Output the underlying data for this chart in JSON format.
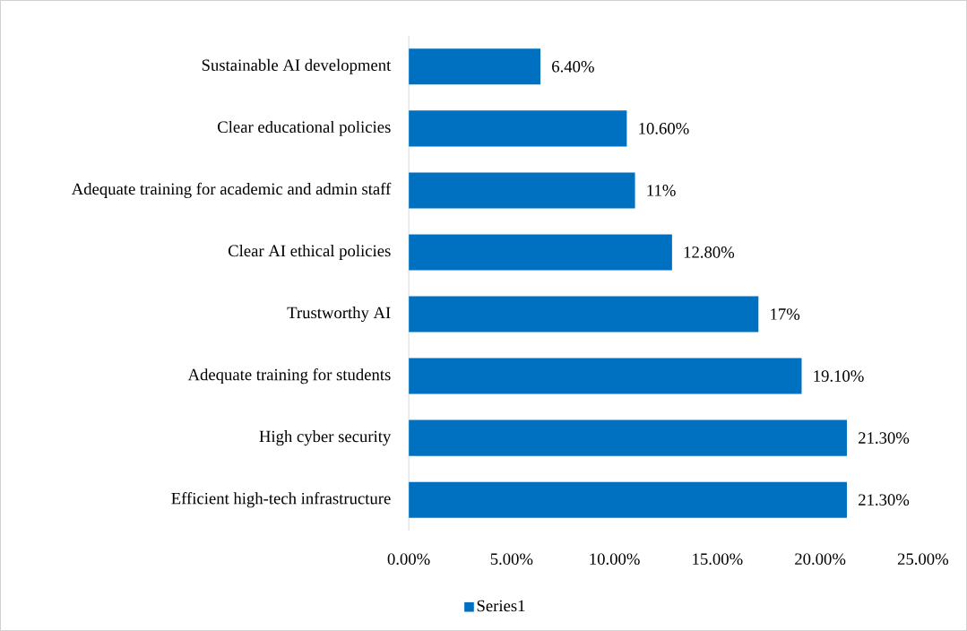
{
  "chart_data": {
    "type": "bar",
    "orientation": "horizontal",
    "categories": [
      "Sustainable AI development",
      "Clear educational policies",
      "Adequate training for academic and admin staff",
      "Clear AI ethical policies",
      "Trustworthy AI",
      "Adequate training for students",
      "High cyber security",
      "Efficient high-tech infrastructure"
    ],
    "series": [
      {
        "name": "Series1",
        "color": "#0070c0",
        "values": [
          6.4,
          10.6,
          11,
          12.8,
          17,
          19.1,
          21.3,
          21.3
        ],
        "value_labels": [
          "6.40%",
          "10.60%",
          "11%",
          "12.80%",
          "17%",
          "19.10%",
          "21.30%",
          "21.30%"
        ]
      }
    ],
    "xlim": [
      0,
      25
    ],
    "xticks": [
      {
        "value": 0,
        "label": "0.00%"
      },
      {
        "value": 5,
        "label": "5.00%"
      },
      {
        "value": 10,
        "label": "10.00%"
      },
      {
        "value": 15,
        "label": "15.00%"
      },
      {
        "value": 20,
        "label": "20.00%"
      },
      {
        "value": 25,
        "label": "25.00%"
      }
    ],
    "legend": "bottom"
  }
}
